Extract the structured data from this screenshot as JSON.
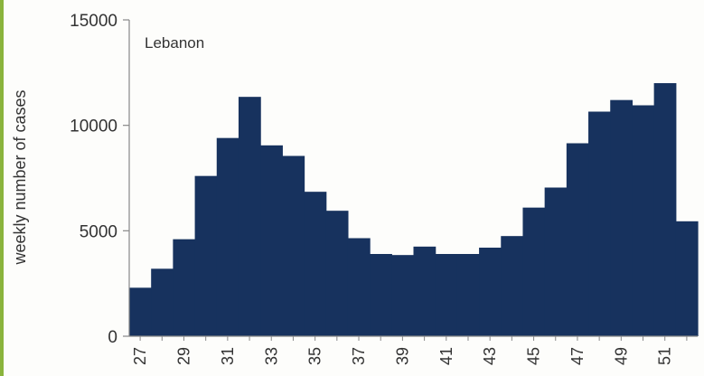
{
  "chart_data": {
    "type": "bar",
    "title": "",
    "annotation": "Lebanon",
    "xlabel": "",
    "ylabel": "weekly number of cases",
    "ylim": [
      0,
      15000
    ],
    "yticks": [
      0,
      5000,
      10000,
      15000
    ],
    "bar_color": "#17325e",
    "grid": false,
    "categories": [
      "27",
      "28",
      "29",
      "30",
      "31",
      "32",
      "33",
      "34",
      "35",
      "36",
      "37",
      "38",
      "39",
      "40",
      "41",
      "42",
      "43",
      "44",
      "45",
      "46",
      "47",
      "48",
      "49",
      "50",
      "51",
      "52"
    ],
    "tick_labels": [
      "27",
      "29",
      "31",
      "33",
      "35",
      "37",
      "39",
      "41",
      "43",
      "45",
      "47",
      "49",
      "51"
    ],
    "values": [
      2300,
      3200,
      4600,
      7600,
      9400,
      11350,
      9050,
      8550,
      6850,
      5950,
      4650,
      3900,
      3850,
      4250,
      3900,
      3900,
      4200,
      4750,
      6100,
      7050,
      9150,
      10650,
      11200,
      10950,
      12000,
      5450
    ]
  }
}
